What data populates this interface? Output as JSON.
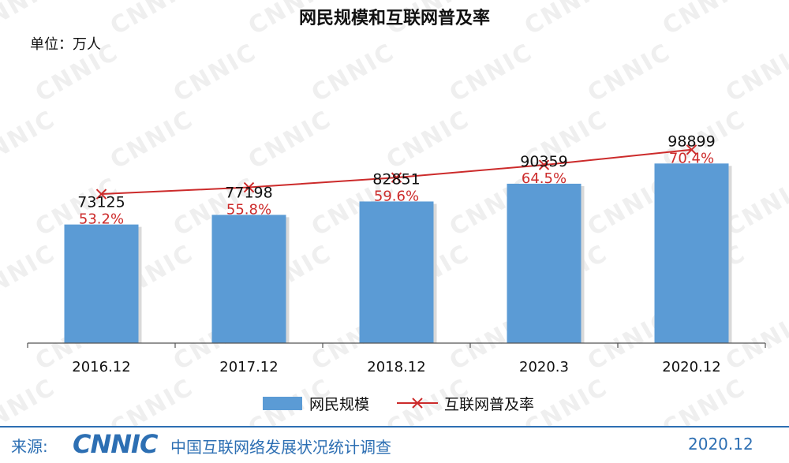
{
  "chart_data": {
    "type": "bar",
    "title": "网民规模和互联网普及率",
    "unit_label": "单位：万人",
    "categories": [
      "2016.12",
      "2017.12",
      "2018.12",
      "2020.3",
      "2020.12"
    ],
    "series": [
      {
        "name": "网民规模",
        "type": "bar",
        "values": [
          73125,
          77198,
          82851,
          90359,
          98899
        ],
        "labels": [
          "73125",
          "77198",
          "82851",
          "90359",
          "98899"
        ],
        "color": "#5b9bd5"
      },
      {
        "name": "互联网普及率",
        "type": "line",
        "values": [
          53.2,
          55.8,
          59.6,
          64.5,
          70.4
        ],
        "labels": [
          "53.2%",
          "55.8%",
          "59.6%",
          "64.5%",
          "70.4%"
        ],
        "color": "#cc2b2b"
      }
    ],
    "legend": "bottom",
    "grid": false
  },
  "watermark": "CNNIC",
  "footer": {
    "source_label": "来源:",
    "logo": "CNNIC",
    "organization": "中国互联网络发展状况统计调查",
    "date": "2020.12"
  }
}
